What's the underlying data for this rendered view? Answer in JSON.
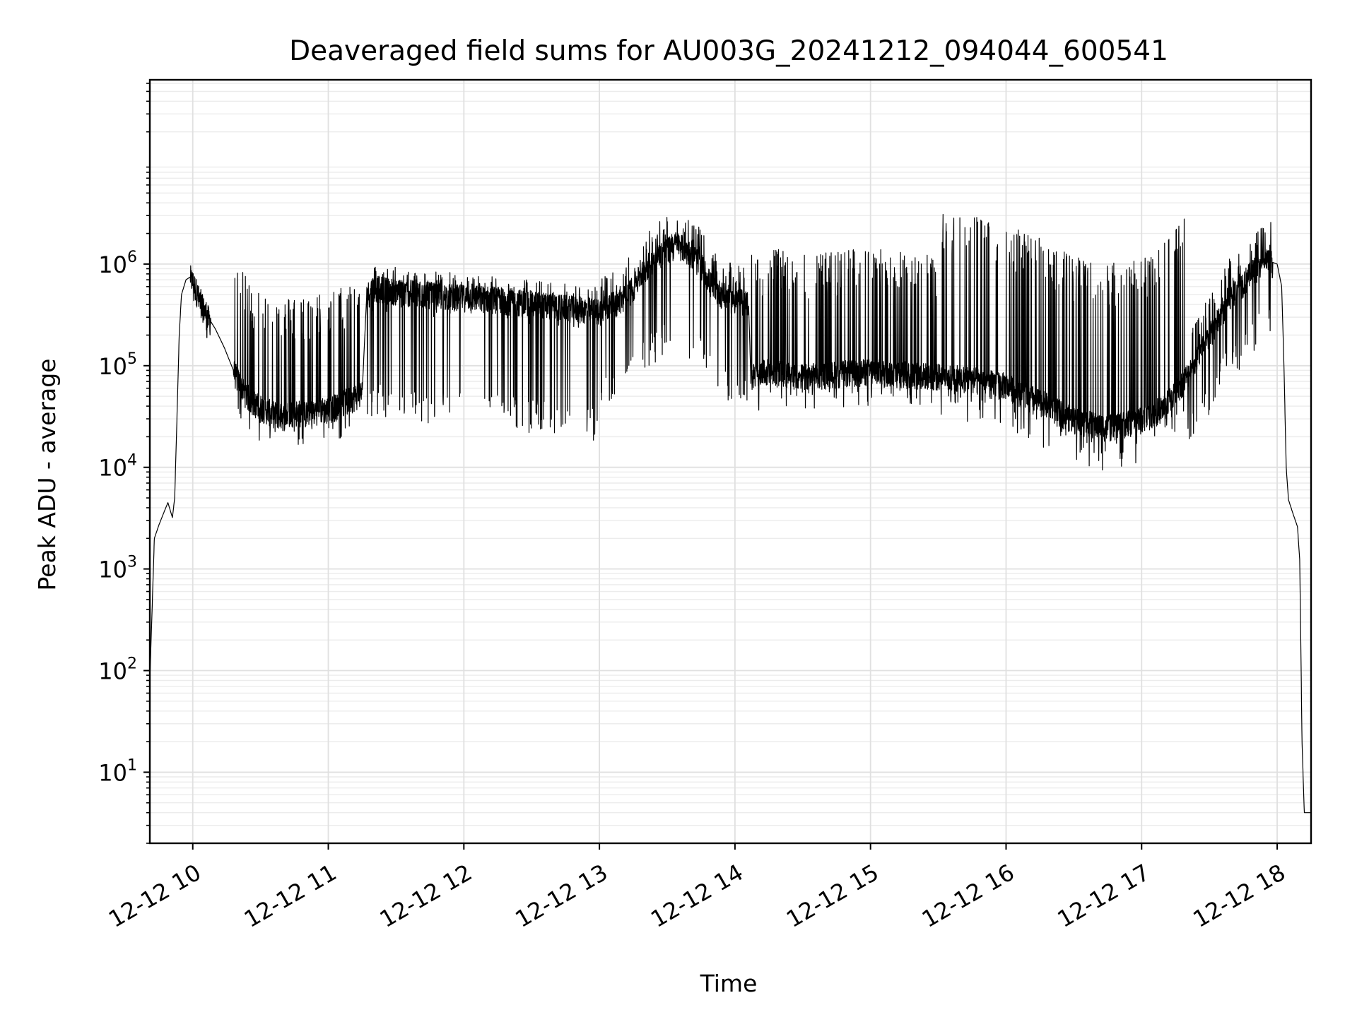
{
  "chart_data": {
    "type": "line",
    "title": "Deaveraged field sums for AU003G_20241212_094044_600541",
    "xlabel": "Time",
    "ylabel": "Peak ADU - average",
    "xlim": [
      "2024-12-12 09:41",
      "2024-12-12 18:15"
    ],
    "ylim": [
      2,
      65000000
    ],
    "yscale": "log",
    "grid": "both",
    "line_color": "#000000",
    "x_ticks": [
      {
        "value": "2024-12-12 10:00",
        "label": "12-12 10"
      },
      {
        "value": "2024-12-12 11:00",
        "label": "12-12 11"
      },
      {
        "value": "2024-12-12 12:00",
        "label": "12-12 12"
      },
      {
        "value": "2024-12-12 13:00",
        "label": "12-12 13"
      },
      {
        "value": "2024-12-12 14:00",
        "label": "12-12 14"
      },
      {
        "value": "2024-12-12 15:00",
        "label": "12-12 15"
      },
      {
        "value": "2024-12-12 16:00",
        "label": "12-12 16"
      },
      {
        "value": "2024-12-12 17:00",
        "label": "12-12 17"
      },
      {
        "value": "2024-12-12 18:00",
        "label": "12-12 18"
      }
    ],
    "y_ticks": [
      {
        "value": 10,
        "base": "10",
        "exp": "1"
      },
      {
        "value": 100,
        "base": "10",
        "exp": "2"
      },
      {
        "value": 1000,
        "base": "10",
        "exp": "3"
      },
      {
        "value": 10000,
        "base": "10",
        "exp": "4"
      },
      {
        "value": 100000,
        "base": "10",
        "exp": "5"
      },
      {
        "value": 1000000,
        "base": "10",
        "exp": "6"
      }
    ],
    "series": [
      {
        "x": [
          "2024-12-12 09:41",
          "2024-12-12 09:42",
          "2024-12-12 09:43",
          "2024-12-12 09:45",
          "2024-12-12 09:47",
          "2024-12-12 09:49",
          "2024-12-12 09:51",
          "2024-12-12 09:52",
          "2024-12-12 09:53",
          "2024-12-12 09:54",
          "2024-12-12 09:55",
          "2024-12-12 09:57",
          "2024-12-12 09:59",
          "2024-12-12 10:01",
          "2024-12-12 10:03",
          "2024-12-12 10:06",
          "2024-12-12 10:10",
          "2024-12-12 10:14",
          "2024-12-12 10:18",
          "2024-12-12 10:22",
          "2024-12-12 10:26",
          "2024-12-12 10:30",
          "2024-12-12 10:35",
          "2024-12-12 10:40",
          "2024-12-12 10:45",
          "2024-12-12 10:50",
          "2024-12-12 10:55",
          "2024-12-12 11:00",
          "2024-12-12 11:05",
          "2024-12-12 11:10",
          "2024-12-12 11:15",
          "2024-12-12 11:17",
          "2024-12-12 11:20",
          "2024-12-12 11:30",
          "2024-12-12 11:40",
          "2024-12-12 11:50",
          "2024-12-12 12:00",
          "2024-12-12 12:15",
          "2024-12-12 12:30",
          "2024-12-12 12:45",
          "2024-12-12 13:00",
          "2024-12-12 13:10",
          "2024-12-12 13:15",
          "2024-12-12 13:20",
          "2024-12-12 13:25",
          "2024-12-12 13:30",
          "2024-12-12 13:35",
          "2024-12-12 13:40",
          "2024-12-12 13:45",
          "2024-12-12 13:50",
          "2024-12-12 13:55",
          "2024-12-12 14:00",
          "2024-12-12 14:06",
          "2024-12-12 14:07",
          "2024-12-12 14:15",
          "2024-12-12 14:30",
          "2024-12-12 14:45",
          "2024-12-12 15:00",
          "2024-12-12 15:15",
          "2024-12-12 15:30",
          "2024-12-12 15:45",
          "2024-12-12 16:00",
          "2024-12-12 16:15",
          "2024-12-12 16:30",
          "2024-12-12 16:45",
          "2024-12-12 17:00",
          "2024-12-12 17:10",
          "2024-12-12 17:20",
          "2024-12-12 17:30",
          "2024-12-12 17:40",
          "2024-12-12 17:50",
          "2024-12-12 17:55",
          "2024-12-12 18:00",
          "2024-12-12 18:02",
          "2024-12-12 18:03",
          "2024-12-12 18:04",
          "2024-12-12 18:05",
          "2024-12-12 18:07",
          "2024-12-12 18:09",
          "2024-12-12 18:10",
          "2024-12-12 18:11",
          "2024-12-12 18:12",
          "2024-12-12 18:15"
        ],
        "y": [
          80,
          400,
          2000,
          2700,
          3500,
          4500,
          3200,
          5000,
          30000,
          200000,
          500000,
          700000,
          750000,
          600000,
          450000,
          320000,
          230000,
          150000,
          90000,
          60000,
          45000,
          40000,
          35000,
          32000,
          36000,
          34000,
          37000,
          38000,
          42000,
          48000,
          55000,
          500000,
          600000,
          550000,
          520000,
          500000,
          480000,
          460000,
          420000,
          380000,
          350000,
          450000,
          600000,
          900000,
          1200000,
          1400000,
          1600000,
          1300000,
          1000000,
          600000,
          500000,
          450000,
          420000,
          80000,
          90000,
          80000,
          85000,
          90000,
          85000,
          80000,
          75000,
          65000,
          45000,
          30000,
          25000,
          30000,
          40000,
          80000,
          200000,
          500000,
          900000,
          1100000,
          1000000,
          600000,
          100000,
          10000,
          4800,
          3500,
          2600,
          1200,
          20,
          4,
          4
        ],
        "spikes": {
          "segments": [
            {
              "from": "2024-12-12 09:59",
              "to": "2024-12-12 10:08",
              "low_frac": 0.8,
              "high_mult": 1.4
            },
            {
              "from": "2024-12-12 10:18",
              "to": "2024-12-12 11:15",
              "low_frac": 0.75,
              "high_mult": 14
            },
            {
              "from": "2024-12-12 11:17",
              "to": "2024-12-12 13:00",
              "low_frac": 0.08,
              "high_mult": 1.7
            },
            {
              "from": "2024-12-12 13:00",
              "to": "2024-12-12 14:06",
              "low_frac": 0.15,
              "high_mult": 2.2
            },
            {
              "from": "2024-12-12 14:07",
              "to": "2024-12-12 15:30",
              "low_frac": 0.7,
              "high_mult": 16
            },
            {
              "from": "2024-12-12 15:30",
              "to": "2024-12-12 17:20",
              "low_frac": 0.6,
              "high_mult": 40
            },
            {
              "from": "2024-12-12 17:20",
              "to": "2024-12-12 17:58",
              "low_frac": 0.25,
              "high_mult": 2.5
            }
          ]
        }
      }
    ]
  }
}
